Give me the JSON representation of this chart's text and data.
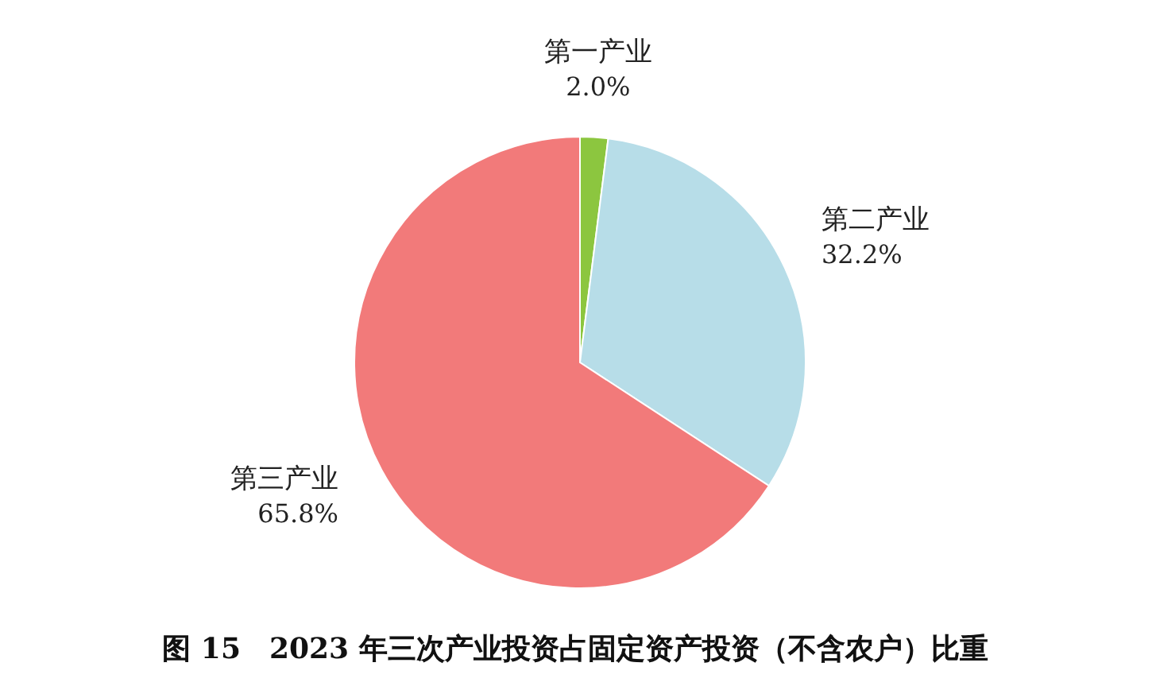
{
  "chart_data": {
    "type": "pie",
    "title": "图 15　2023 年三次产业投资占固定资产投资（不含农户）比重",
    "categories": [
      "第一产业",
      "第二产业",
      "第三产业"
    ],
    "values": [
      2.0,
      32.2,
      65.8
    ],
    "colors": [
      "#8cc63f",
      "#b7dde8",
      "#f27a7a"
    ],
    "value_labels": [
      "2.0%",
      "32.2%",
      "65.8%"
    ],
    "legend": false
  }
}
